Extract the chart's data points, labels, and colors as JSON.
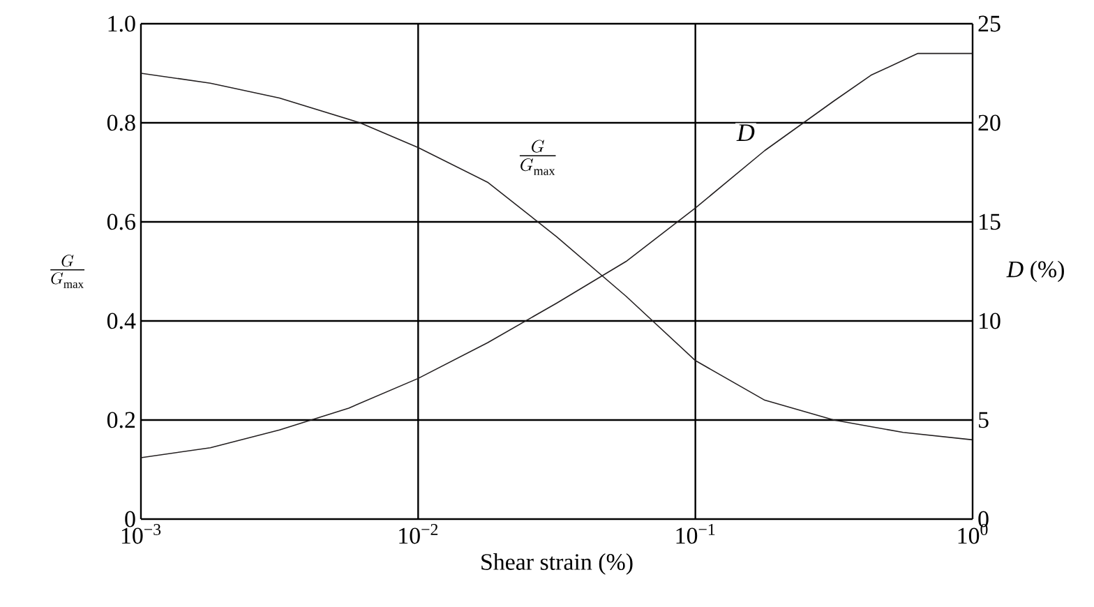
{
  "chart_data": {
    "type": "line",
    "xlabel": "Shear strain (%)",
    "ylabel": "\\frac{G}{G_{\\max}}",
    "y2label": "*D* (%)",
    "series": [
      {
        "color": "#231f20",
        "x": [
          0.001,
          0.00178,
          0.00316,
          0.00617,
          0.01,
          0.0178,
          0.0316,
          0.0562,
          0.1,
          0.178,
          0.316,
          0.562,
          1
        ],
        "values": [
          0.9,
          0.88,
          0.85,
          0.8,
          0.75,
          0.68,
          0.57,
          0.45,
          0.32,
          0.24,
          0.2,
          0.175,
          0.16
        ]
      },
      {
        "color": "#231f20",
        "axis": "y2",
        "x": [
          0.001,
          0.00178,
          0.00316,
          0.00562,
          0.01,
          0.0178,
          0.0316,
          0.0562,
          0.1,
          0.178,
          0.316,
          0.43,
          0.635,
          1
        ],
        "values": [
          3.1,
          3.6,
          4.5,
          5.6,
          7.1,
          8.9,
          10.9,
          13.0,
          15.7,
          18.6,
          21.1,
          22.4,
          23.5,
          23.5
        ]
      }
    ],
    "log": "x",
    "xlim": [
      0.001,
      1
    ],
    "xticks": [
      {
        "value": 0.001,
        "label": "10$^{−3}$"
      },
      {
        "value": 0.01,
        "label": "10$^{−2}$"
      },
      {
        "value": 0.1,
        "label": "10$^{−1}$"
      },
      {
        "value": 1,
        "label": "10$^{0}$"
      }
    ],
    "ylim": [
      0,
      1
    ],
    "yticks": [
      0,
      0.2,
      0.4,
      0.6,
      0.8,
      {
        "value": 1,
        "label": "1.0"
      }
    ],
    "y2lim": [
      0,
      25
    ],
    "y2ticks": [
      0,
      5,
      10,
      15,
      20,
      25
    ],
    "grid": true,
    "line_style": "solid",
    "marker": "none",
    "annotations": [
      {
        "text": "\\frac{G}{G_{\\max}}",
        "x": 0.027,
        "y": 0.73
      },
      {
        "text": "*D*",
        "x": 0.152,
        "y": 0.78
      }
    ]
  }
}
